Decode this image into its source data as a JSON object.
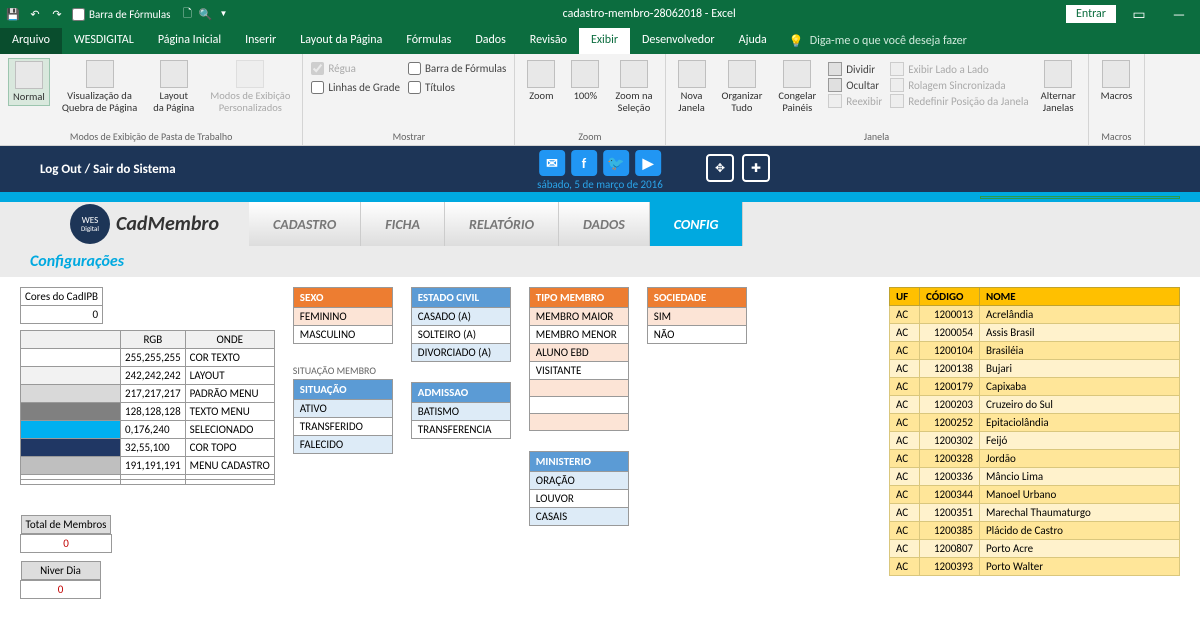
{
  "titlebar": {
    "formula_bar": "Barra de Fórmulas",
    "title": "cadastro-membro-28062018 - Excel",
    "entrar": "Entrar"
  },
  "menu": {
    "file": "Arquivo",
    "tabs": [
      "WESDIGITAL",
      "Página Inicial",
      "Inserir",
      "Layout da Página",
      "Fórmulas",
      "Dados",
      "Revisão",
      "Exibir",
      "Desenvolvedor",
      "Ajuda"
    ],
    "tell": "Diga-me o que você deseja fazer"
  },
  "ribbon": {
    "g1": {
      "normal": "Normal",
      "quebra": "Visualização da\nQuebra de Página",
      "layout": "Layout\nda Página",
      "custom": "Modos de Exibição\nPersonalizados",
      "label": "Modos de Exibição de Pasta de Trabalho"
    },
    "g2": {
      "regua": "Régua",
      "barra": "Barra de Fórmulas",
      "grade": "Linhas de Grade",
      "titulos": "Títulos",
      "label": "Mostrar"
    },
    "g3": {
      "zoom": "Zoom",
      "cem": "100%",
      "sel": "Zoom na\nSeleção",
      "label": "Zoom"
    },
    "g4": {
      "nova": "Nova\nJanela",
      "org": "Organizar\nTudo",
      "cong": "Congelar\nPainéis",
      "div": "Dividir",
      "ocu": "Ocultar",
      "reex": "Reexibir",
      "lado": "Exibir Lado a Lado",
      "rol": "Rolagem Sincronizada",
      "redef": "Redefinir Posição da Janela",
      "alt": "Alternar\nJanelas",
      "label": "Janela"
    },
    "g5": {
      "macros": "Macros",
      "label": "Macros"
    }
  },
  "app": {
    "logout": "Log Out  /  Sair do Sistema",
    "date": "sábado, 5 de março de 2016",
    "brand": "CadMembro",
    "wes1": "WES",
    "wes2": "Digital",
    "navs": [
      "CADASTRO",
      "FICHA",
      "RELATÓRIO",
      "DADOS",
      "CONFIG"
    ],
    "section": "Configurações"
  },
  "cores": {
    "title": "Cores do CadIPB",
    "zero": "0",
    "h_rgb": "RGB",
    "h_onde": "ONDE",
    "rows": [
      {
        "c": "#ffffff",
        "rgb": "255,255,255",
        "onde": "COR TEXTO"
      },
      {
        "c": "#f2f2f2",
        "rgb": "242,242,242",
        "onde": "LAYOUT"
      },
      {
        "c": "#d9d9d9",
        "rgb": "217,217,217",
        "onde": "PADRÃO MENU"
      },
      {
        "c": "#808080",
        "rgb": "128,128,128",
        "onde": "TEXTO MENU"
      },
      {
        "c": "#00b0f0",
        "rgb": "0,176,240",
        "onde": "SELECIONADO"
      },
      {
        "c": "#203764",
        "rgb": "32,55,100",
        "onde": "COR TOPO"
      },
      {
        "c": "#bfbfbf",
        "rgb": "191,191,191",
        "onde": "MENU CADASTRO"
      }
    ],
    "total_lbl": "Total de Membros",
    "total_v": "0",
    "niver_lbl": "Niver Dia",
    "niver_v": "0"
  },
  "lists": {
    "sexo": {
      "h": "SEXO",
      "r": [
        "FEMININO",
        "MASCULINO"
      ]
    },
    "civil": {
      "h": "ESTADO CIVIL",
      "r": [
        "CASADO (A)",
        "SOLTEIRO (A)",
        "DIVORCIADO (A)"
      ]
    },
    "tipo": {
      "h": "TIPO MEMBRO",
      "r": [
        "MEMBRO MAIOR",
        "MEMBRO MENOR",
        "ALUNO EBD",
        "VISITANTE",
        "",
        "",
        ""
      ]
    },
    "soc": {
      "h": "SOCIEDADE",
      "r": [
        "SIM",
        "NÃO"
      ]
    },
    "sit_lbl": "SITUAÇÃO MEMBRO",
    "sit": {
      "h": "SITUAÇÃO",
      "r": [
        "ATIVO",
        "TRANSFERIDO",
        "FALECIDO"
      ]
    },
    "adm": {
      "h": "ADMISSAO",
      "r": [
        "BATISMO",
        "TRANSFERENCIA"
      ]
    },
    "min": {
      "h": "MINISTERIO",
      "r": [
        "ORAÇÃO",
        "LOUVOR",
        "CASAIS"
      ]
    }
  },
  "muni": {
    "h_uf": "UF",
    "h_cod": "CÓDIGO",
    "h_nome": "NOME",
    "rows": [
      [
        "AC",
        "1200013",
        "Acrelândia"
      ],
      [
        "AC",
        "1200054",
        "Assis Brasil"
      ],
      [
        "AC",
        "1200104",
        "Brasiléia"
      ],
      [
        "AC",
        "1200138",
        "Bujari"
      ],
      [
        "AC",
        "1200179",
        "Capixaba"
      ],
      [
        "AC",
        "1200203",
        "Cruzeiro do Sul"
      ],
      [
        "AC",
        "1200252",
        "Epitaciolândia"
      ],
      [
        "AC",
        "1200302",
        "Feijó"
      ],
      [
        "AC",
        "1200328",
        "Jordão"
      ],
      [
        "AC",
        "1200336",
        "Mâncio Lima"
      ],
      [
        "AC",
        "1200344",
        "Manoel Urbano"
      ],
      [
        "AC",
        "1200351",
        "Marechal Thaumaturgo"
      ],
      [
        "AC",
        "1200385",
        "Plácido de Castro"
      ],
      [
        "AC",
        "1200807",
        "Porto Acre"
      ],
      [
        "AC",
        "1200393",
        "Porto Walter"
      ]
    ]
  }
}
